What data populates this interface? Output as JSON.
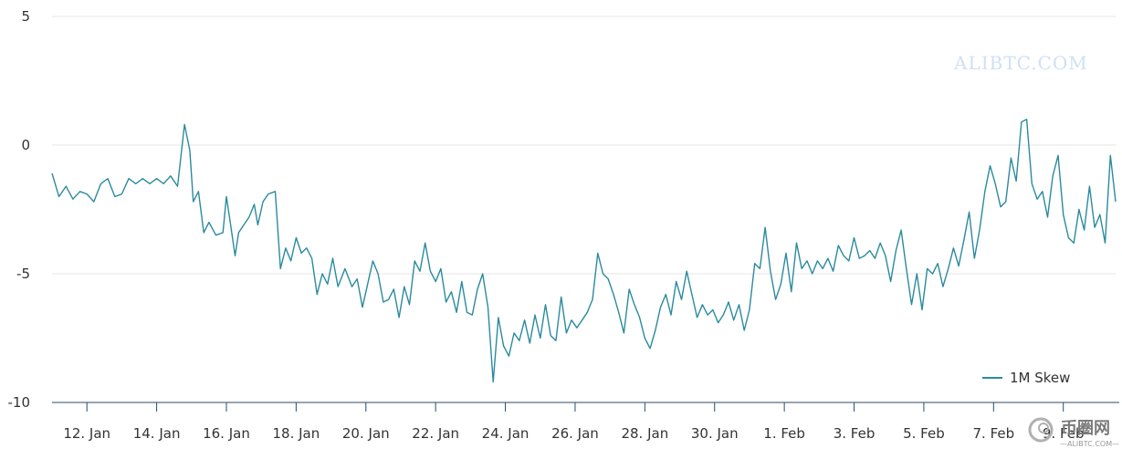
{
  "colors": {
    "series": "#2b8a9e",
    "grid": "#e6e6e6",
    "axis": "#2b4a6b",
    "text": "#333333",
    "watermark": "#cfe0f5"
  },
  "watermark": {
    "text": "ALIBTC.COM"
  },
  "logo": {
    "cn": "币圈网",
    "sub": "—ALIBTC.COM—",
    "icon": "spiral-logo-icon"
  },
  "chart_data": {
    "type": "line",
    "title": "",
    "xlabel": "",
    "ylabel": "",
    "ylim": [
      -10,
      5
    ],
    "yticks": [
      "5",
      "0",
      "-5",
      "-10"
    ],
    "ytick_values": [
      5,
      0,
      -5,
      -10
    ],
    "xticks": [
      "12. Jan",
      "14. Jan",
      "16. Jan",
      "18. Jan",
      "20. Jan",
      "22. Jan",
      "24. Jan",
      "26. Jan",
      "28. Jan",
      "30. Jan",
      "1. Feb",
      "3. Feb",
      "5. Feb",
      "7. Feb",
      "9. Feb"
    ],
    "xtick_values": [
      1.0,
      3.0,
      5.0,
      7.0,
      9.0,
      11.0,
      13.0,
      15.0,
      17.0,
      19.0,
      21.0,
      23.0,
      25.0,
      27.0,
      29.0
    ],
    "xlim": [
      0.0,
      30.5
    ],
    "legend": {
      "position": "bottom-right",
      "entries": [
        "1M Skew"
      ]
    },
    "series": [
      {
        "name": "1M Skew",
        "points": [
          [
            0.0,
            -1.1
          ],
          [
            0.2,
            -2.0
          ],
          [
            0.4,
            -1.6
          ],
          [
            0.6,
            -2.1
          ],
          [
            0.8,
            -1.8
          ],
          [
            1.0,
            -1.9
          ],
          [
            1.2,
            -2.2
          ],
          [
            1.4,
            -1.5
          ],
          [
            1.6,
            -1.3
          ],
          [
            1.8,
            -2.0
          ],
          [
            2.0,
            -1.9
          ],
          [
            2.2,
            -1.3
          ],
          [
            2.4,
            -1.5
          ],
          [
            2.6,
            -1.3
          ],
          [
            2.8,
            -1.5
          ],
          [
            3.0,
            -1.3
          ],
          [
            3.2,
            -1.5
          ],
          [
            3.4,
            -1.2
          ],
          [
            3.6,
            -1.6
          ],
          [
            3.8,
            0.8
          ],
          [
            3.95,
            -0.2
          ],
          [
            4.05,
            -2.2
          ],
          [
            4.2,
            -1.8
          ],
          [
            4.35,
            -3.4
          ],
          [
            4.5,
            -3.0
          ],
          [
            4.7,
            -3.5
          ],
          [
            4.9,
            -3.4
          ],
          [
            5.0,
            -2.0
          ],
          [
            5.1,
            -2.9
          ],
          [
            5.25,
            -4.3
          ],
          [
            5.35,
            -3.4
          ],
          [
            5.5,
            -3.1
          ],
          [
            5.65,
            -2.8
          ],
          [
            5.8,
            -2.3
          ],
          [
            5.9,
            -3.1
          ],
          [
            6.05,
            -2.2
          ],
          [
            6.2,
            -1.9
          ],
          [
            6.4,
            -1.8
          ],
          [
            6.55,
            -4.8
          ],
          [
            6.7,
            -4.0
          ],
          [
            6.85,
            -4.5
          ],
          [
            7.0,
            -3.6
          ],
          [
            7.15,
            -4.2
          ],
          [
            7.3,
            -4.0
          ],
          [
            7.45,
            -4.4
          ],
          [
            7.6,
            -5.8
          ],
          [
            7.75,
            -5.0
          ],
          [
            7.9,
            -5.4
          ],
          [
            8.05,
            -4.4
          ],
          [
            8.2,
            -5.5
          ],
          [
            8.4,
            -4.8
          ],
          [
            8.6,
            -5.5
          ],
          [
            8.75,
            -5.2
          ],
          [
            8.9,
            -6.3
          ],
          [
            9.05,
            -5.4
          ],
          [
            9.2,
            -4.5
          ],
          [
            9.35,
            -5.0
          ],
          [
            9.5,
            -6.1
          ],
          [
            9.65,
            -6.0
          ],
          [
            9.8,
            -5.6
          ],
          [
            9.95,
            -6.7
          ],
          [
            10.1,
            -5.5
          ],
          [
            10.25,
            -6.2
          ],
          [
            10.4,
            -4.5
          ],
          [
            10.55,
            -4.9
          ],
          [
            10.7,
            -3.8
          ],
          [
            10.85,
            -4.9
          ],
          [
            11.0,
            -5.3
          ],
          [
            11.15,
            -4.8
          ],
          [
            11.3,
            -6.1
          ],
          [
            11.45,
            -5.7
          ],
          [
            11.6,
            -6.5
          ],
          [
            11.75,
            -5.3
          ],
          [
            11.9,
            -6.5
          ],
          [
            12.05,
            -6.6
          ],
          [
            12.2,
            -5.6
          ],
          [
            12.35,
            -5.0
          ],
          [
            12.5,
            -6.3
          ],
          [
            12.65,
            -9.2
          ],
          [
            12.8,
            -6.7
          ],
          [
            12.95,
            -7.8
          ],
          [
            13.1,
            -8.2
          ],
          [
            13.25,
            -7.3
          ],
          [
            13.4,
            -7.6
          ],
          [
            13.55,
            -6.8
          ],
          [
            13.7,
            -7.7
          ],
          [
            13.85,
            -6.6
          ],
          [
            14.0,
            -7.5
          ],
          [
            14.15,
            -6.2
          ],
          [
            14.3,
            -7.4
          ],
          [
            14.45,
            -7.6
          ],
          [
            14.6,
            -5.9
          ],
          [
            14.75,
            -7.3
          ],
          [
            14.9,
            -6.8
          ],
          [
            15.05,
            -7.1
          ],
          [
            15.2,
            -6.8
          ],
          [
            15.35,
            -6.5
          ],
          [
            15.5,
            -6.0
          ],
          [
            15.65,
            -4.2
          ],
          [
            15.8,
            -5.0
          ],
          [
            15.95,
            -5.2
          ],
          [
            16.1,
            -5.8
          ],
          [
            16.25,
            -6.5
          ],
          [
            16.4,
            -7.3
          ],
          [
            16.55,
            -5.6
          ],
          [
            16.7,
            -6.2
          ],
          [
            16.85,
            -6.7
          ],
          [
            17.0,
            -7.5
          ],
          [
            17.15,
            -7.9
          ],
          [
            17.3,
            -7.2
          ],
          [
            17.45,
            -6.3
          ],
          [
            17.6,
            -5.8
          ],
          [
            17.75,
            -6.6
          ],
          [
            17.9,
            -5.3
          ],
          [
            18.05,
            -6.0
          ],
          [
            18.2,
            -4.9
          ],
          [
            18.35,
            -5.8
          ],
          [
            18.5,
            -6.7
          ],
          [
            18.65,
            -6.2
          ],
          [
            18.8,
            -6.6
          ],
          [
            18.95,
            -6.4
          ],
          [
            19.1,
            -6.9
          ],
          [
            19.25,
            -6.6
          ],
          [
            19.4,
            -6.1
          ],
          [
            19.55,
            -6.8
          ],
          [
            19.7,
            -6.2
          ],
          [
            19.85,
            -7.2
          ],
          [
            20.0,
            -6.4
          ],
          [
            20.15,
            -4.6
          ],
          [
            20.3,
            -4.8
          ],
          [
            20.45,
            -3.2
          ],
          [
            20.6,
            -4.9
          ],
          [
            20.75,
            -6.0
          ],
          [
            20.9,
            -5.4
          ],
          [
            21.05,
            -4.2
          ],
          [
            21.2,
            -5.7
          ],
          [
            21.35,
            -3.8
          ],
          [
            21.5,
            -4.8
          ],
          [
            21.65,
            -4.5
          ],
          [
            21.8,
            -5.0
          ],
          [
            21.95,
            -4.5
          ],
          [
            22.1,
            -4.8
          ],
          [
            22.25,
            -4.4
          ],
          [
            22.4,
            -4.9
          ],
          [
            22.55,
            -3.9
          ],
          [
            22.7,
            -4.3
          ],
          [
            22.85,
            -4.5
          ],
          [
            23.0,
            -3.6
          ],
          [
            23.15,
            -4.4
          ],
          [
            23.3,
            -4.3
          ],
          [
            23.45,
            -4.1
          ],
          [
            23.6,
            -4.4
          ],
          [
            23.75,
            -3.8
          ],
          [
            23.9,
            -4.3
          ],
          [
            24.05,
            -5.3
          ],
          [
            24.2,
            -4.1
          ],
          [
            24.35,
            -3.3
          ],
          [
            24.5,
            -4.8
          ],
          [
            24.65,
            -6.2
          ],
          [
            24.8,
            -5.0
          ],
          [
            24.95,
            -6.4
          ],
          [
            25.1,
            -4.8
          ],
          [
            25.25,
            -5.0
          ],
          [
            25.4,
            -4.6
          ],
          [
            25.55,
            -5.5
          ],
          [
            25.7,
            -4.8
          ],
          [
            25.85,
            -4.0
          ],
          [
            26.0,
            -4.7
          ],
          [
            26.15,
            -3.7
          ],
          [
            26.3,
            -2.6
          ],
          [
            26.45,
            -4.4
          ],
          [
            26.6,
            -3.3
          ],
          [
            26.75,
            -1.8
          ],
          [
            26.9,
            -0.8
          ],
          [
            27.05,
            -1.5
          ],
          [
            27.2,
            -2.4
          ],
          [
            27.35,
            -2.2
          ],
          [
            27.5,
            -0.5
          ],
          [
            27.65,
            -1.4
          ],
          [
            27.8,
            0.9
          ],
          [
            27.95,
            1.0
          ],
          [
            28.1,
            -1.5
          ],
          [
            28.25,
            -2.1
          ],
          [
            28.4,
            -1.8
          ],
          [
            28.55,
            -2.8
          ],
          [
            28.7,
            -1.2
          ],
          [
            28.85,
            -0.4
          ],
          [
            29.0,
            -2.7
          ],
          [
            29.15,
            -3.6
          ],
          [
            29.3,
            -3.8
          ],
          [
            29.45,
            -2.5
          ],
          [
            29.6,
            -3.3
          ],
          [
            29.75,
            -1.6
          ],
          [
            29.9,
            -3.2
          ],
          [
            30.05,
            -2.7
          ],
          [
            30.2,
            -3.8
          ],
          [
            30.35,
            -0.4
          ],
          [
            30.5,
            -2.2
          ]
        ]
      }
    ]
  }
}
